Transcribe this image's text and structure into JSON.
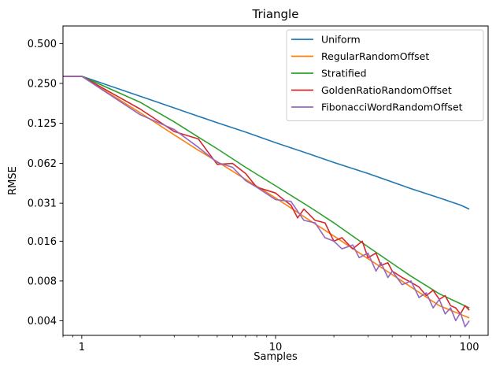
{
  "chart_data": {
    "type": "line",
    "title": "Triangle",
    "xlabel": "Samples",
    "ylabel": "RMSE",
    "xscale": "log",
    "yscale": "log",
    "xlim": [
      0.8,
      125
    ],
    "ylim": [
      0.0031,
      0.68
    ],
    "xticks": [
      {
        "value": 1,
        "label": "1"
      },
      {
        "value": 10,
        "label": "10"
      },
      {
        "value": 100,
        "label": "100"
      }
    ],
    "yticks": [
      {
        "value": 0.004,
        "label": "0.004"
      },
      {
        "value": 0.008,
        "label": "0.008"
      },
      {
        "value": 0.016,
        "label": "0.016"
      },
      {
        "value": 0.031,
        "label": "0.031"
      },
      {
        "value": 0.062,
        "label": "0.062"
      },
      {
        "value": 0.125,
        "label": "0.125"
      },
      {
        "value": 0.25,
        "label": "0.250"
      },
      {
        "value": 0.5,
        "label": "0.500"
      }
    ],
    "legend_position": "top-right",
    "grid": false,
    "series": [
      {
        "name": "Uniform",
        "color": "#1f77b4",
        "points": [
          [
            0.8,
            0.283
          ],
          [
            1,
            0.283
          ],
          [
            2,
            0.2
          ],
          [
            3,
            0.163
          ],
          [
            4,
            0.141
          ],
          [
            5,
            0.126
          ],
          [
            7,
            0.107
          ],
          [
            10,
            0.089
          ],
          [
            15,
            0.073
          ],
          [
            20,
            0.063
          ],
          [
            30,
            0.052
          ],
          [
            50,
            0.04
          ],
          [
            70,
            0.034
          ],
          [
            90,
            0.03
          ],
          [
            100,
            0.028
          ]
        ]
      },
      {
        "name": "RegularRandomOffset",
        "color": "#ff7f0e",
        "points": [
          [
            0.8,
            0.283
          ],
          [
            1,
            0.283
          ],
          [
            2,
            0.15
          ],
          [
            3,
            0.102
          ],
          [
            4,
            0.078
          ],
          [
            5,
            0.064
          ],
          [
            7,
            0.047
          ],
          [
            10,
            0.034
          ],
          [
            15,
            0.023
          ],
          [
            20,
            0.0175
          ],
          [
            30,
            0.0118
          ],
          [
            50,
            0.0072
          ],
          [
            70,
            0.0052
          ],
          [
            100,
            0.0042
          ]
        ]
      },
      {
        "name": "Stratified",
        "color": "#2ca02c",
        "points": [
          [
            0.8,
            0.283
          ],
          [
            1,
            0.283
          ],
          [
            2,
            0.18
          ],
          [
            3,
            0.128
          ],
          [
            4,
            0.098
          ],
          [
            5,
            0.08
          ],
          [
            7,
            0.058
          ],
          [
            10,
            0.042
          ],
          [
            15,
            0.029
          ],
          [
            20,
            0.022
          ],
          [
            30,
            0.0145
          ],
          [
            50,
            0.0087
          ],
          [
            70,
            0.0064
          ],
          [
            100,
            0.005
          ]
        ]
      },
      {
        "name": "GoldenRatioRandomOffset",
        "color": "#d62728",
        "points": [
          [
            0.8,
            0.283
          ],
          [
            1,
            0.283
          ],
          [
            2,
            0.16
          ],
          [
            3,
            0.108
          ],
          [
            4,
            0.095
          ],
          [
            4.5,
            0.075
          ],
          [
            5,
            0.061
          ],
          [
            6,
            0.062
          ],
          [
            7,
            0.052
          ],
          [
            8,
            0.041
          ],
          [
            10,
            0.037
          ],
          [
            11,
            0.033
          ],
          [
            12,
            0.03
          ],
          [
            13,
            0.024
          ],
          [
            14,
            0.028
          ],
          [
            16,
            0.023
          ],
          [
            18,
            0.022
          ],
          [
            20,
            0.016
          ],
          [
            22,
            0.017
          ],
          [
            25,
            0.014
          ],
          [
            28,
            0.016
          ],
          [
            30,
            0.012
          ],
          [
            33,
            0.013
          ],
          [
            35,
            0.0105
          ],
          [
            38,
            0.011
          ],
          [
            40,
            0.0095
          ],
          [
            45,
            0.0085
          ],
          [
            50,
            0.0078
          ],
          [
            55,
            0.0072
          ],
          [
            60,
            0.0062
          ],
          [
            65,
            0.0068
          ],
          [
            70,
            0.0058
          ],
          [
            75,
            0.0062
          ],
          [
            80,
            0.0052
          ],
          [
            85,
            0.005
          ],
          [
            90,
            0.0045
          ],
          [
            95,
            0.0052
          ],
          [
            100,
            0.0048
          ]
        ]
      },
      {
        "name": "FibonacciWordRandomOffset",
        "color": "#9467bd",
        "points": [
          [
            0.8,
            0.283
          ],
          [
            1,
            0.283
          ],
          [
            2,
            0.145
          ],
          [
            3,
            0.112
          ],
          [
            4,
            0.082
          ],
          [
            5,
            0.063
          ],
          [
            6,
            0.058
          ],
          [
            7,
            0.046
          ],
          [
            8,
            0.041
          ],
          [
            10,
            0.033
          ],
          [
            12,
            0.032
          ],
          [
            14,
            0.023
          ],
          [
            16,
            0.022
          ],
          [
            18,
            0.017
          ],
          [
            20,
            0.016
          ],
          [
            22,
            0.014
          ],
          [
            25,
            0.015
          ],
          [
            27,
            0.012
          ],
          [
            30,
            0.013
          ],
          [
            33,
            0.0095
          ],
          [
            35,
            0.011
          ],
          [
            38,
            0.0085
          ],
          [
            40,
            0.0095
          ],
          [
            45,
            0.0075
          ],
          [
            50,
            0.008
          ],
          [
            55,
            0.006
          ],
          [
            60,
            0.0065
          ],
          [
            65,
            0.005
          ],
          [
            70,
            0.0058
          ],
          [
            75,
            0.0045
          ],
          [
            80,
            0.005
          ],
          [
            85,
            0.004
          ],
          [
            90,
            0.0046
          ],
          [
            95,
            0.0036
          ],
          [
            100,
            0.004
          ]
        ]
      }
    ]
  }
}
